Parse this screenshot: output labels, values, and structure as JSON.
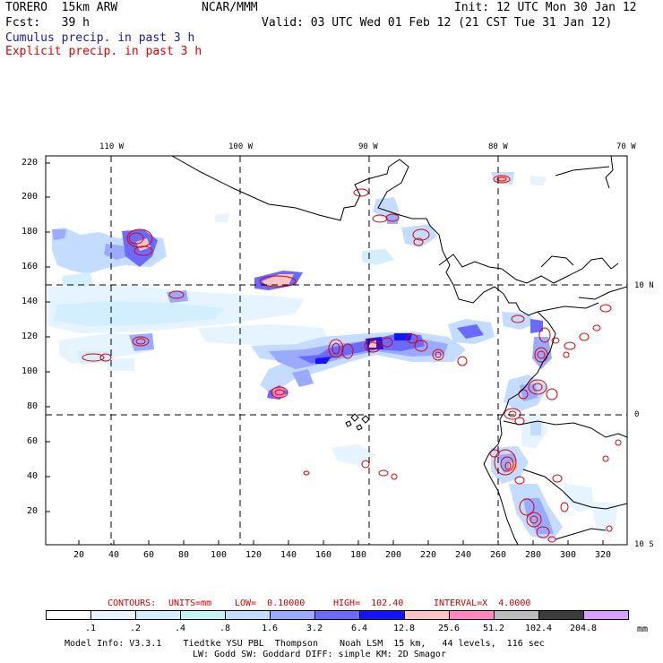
{
  "header": {
    "model": "TORERO  15km ARW",
    "org": "NCAR/MMM",
    "init": "Init: 12 UTC Mon 30 Jan 12",
    "fcst": "Fcst:   39 h",
    "valid": "Valid: 03 UTC Wed 01 Feb 12 (21 CST Tue 31 Jan 12)"
  },
  "legend": {
    "cumulus": "Cumulus precip. in past 3 h",
    "explicit": "Explicit precip. in past 3 h",
    "cumulus_color": "#1a1aa6",
    "explicit_color": "#e00000"
  },
  "map": {
    "lon_labels": [
      "110 W",
      "100 W",
      "90 W",
      "80 W",
      "70 W"
    ],
    "lat_labels": [
      "10 N",
      "0",
      "10 S"
    ],
    "y_ticks": [
      "220",
      "200",
      "180",
      "160",
      "140",
      "120",
      "100",
      "80",
      "60",
      "40",
      "20"
    ],
    "x_ticks": [
      "20",
      "40",
      "60",
      "80",
      "100",
      "120",
      "140",
      "160",
      "180",
      "200",
      "220",
      "240",
      "260",
      "280",
      "300",
      "320"
    ]
  },
  "contours": {
    "label": "CONTOURS:",
    "units": "UNITS=mm",
    "low": "LOW=  0.10000",
    "high": "HIGH=  102.40",
    "interval": "INTERVAL=X  4.0000",
    "color": "#cc0000"
  },
  "colorbar": {
    "labels": [
      ".1",
      ".2",
      ".4",
      ".8",
      "1.6",
      "3.2",
      "6.4",
      "12.8",
      "25.6",
      "51.2",
      "102.4",
      "204.8"
    ],
    "unit": "mm",
    "colors": [
      "#ffffff",
      "#e6f4ff",
      "#d2eeff",
      "#c4f4f4",
      "#c4dcff",
      "#9aaaff",
      "#6a6aff",
      "#1414ff",
      "#fcc4c4",
      "#ff88c0",
      "#bcbcbc",
      "#3c3c3c",
      "#d8a0ff"
    ]
  },
  "footer": {
    "line1": "Model Info: V3.3.1    Tiedtke YSU PBL  Thompson    Noah LSM  15 km,   44 levels,  116 sec",
    "line2": "LW: Godd SW: Goddard DIFF: simple KM: 2D Smagor"
  }
}
